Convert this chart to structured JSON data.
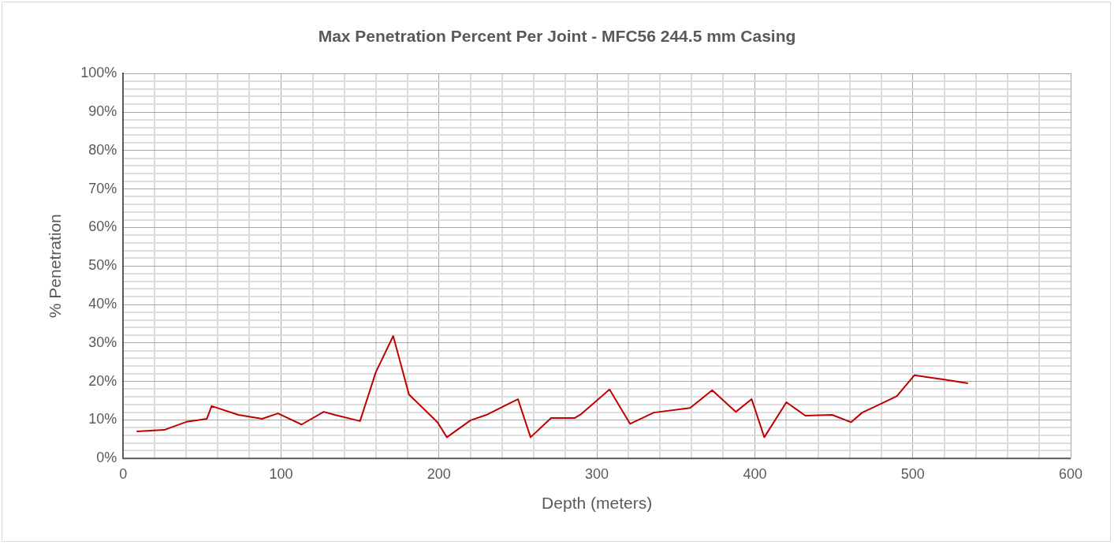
{
  "chart_data": {
    "type": "line",
    "title": "Max Penetration Percent Per Joint - MFC56 244.5 mm Casing",
    "xlabel": "Depth (meters)",
    "ylabel": "% Penetration",
    "x": [
      8.5,
      26,
      40,
      53,
      56,
      73,
      88,
      98,
      113,
      127,
      134,
      150,
      160,
      171,
      181,
      199,
      205,
      220,
      230,
      250,
      258,
      271,
      286,
      290,
      308,
      321,
      336,
      359,
      373,
      388,
      398,
      406,
      420,
      432,
      449,
      461,
      468,
      481,
      490,
      501,
      520,
      535
    ],
    "series": [
      {
        "color": "#c00000",
        "values": [
          7.0,
          7.4,
          9.5,
          10.3,
          13.6,
          11.3,
          10.3,
          11.7,
          8.8,
          12.1,
          11.3,
          9.7,
          22.4,
          31.8,
          16.6,
          9.4,
          5.5,
          9.9,
          11.3,
          15.4,
          5.5,
          10.5,
          10.5,
          11.5,
          17.9,
          9.0,
          11.9,
          13.1,
          17.7,
          12.1,
          15.4,
          5.5,
          14.6,
          11.1,
          11.3,
          9.4,
          11.9,
          14.4,
          16.2,
          21.6,
          20.5,
          19.5
        ]
      }
    ],
    "xlim": [
      0,
      600
    ],
    "xticks": [
      0,
      {
        "value": 20,
        "label": null
      },
      {
        "value": 40,
        "label": null
      },
      {
        "value": 60,
        "label": null
      },
      {
        "value": 80,
        "label": null
      },
      100,
      {
        "value": 120,
        "label": null
      },
      {
        "value": 140,
        "label": null
      },
      {
        "value": 160,
        "label": null
      },
      {
        "value": 180,
        "label": null
      },
      200,
      {
        "value": 220,
        "label": null
      },
      {
        "value": 240,
        "label": null
      },
      {
        "value": 260,
        "label": null
      },
      {
        "value": 280,
        "label": null
      },
      300,
      {
        "value": 320,
        "label": null
      },
      {
        "value": 340,
        "label": null
      },
      {
        "value": 360,
        "label": null
      },
      {
        "value": 380,
        "label": null
      },
      400,
      {
        "value": 420,
        "label": null
      },
      {
        "value": 440,
        "label": null
      },
      {
        "value": 460,
        "label": null
      },
      {
        "value": 480,
        "label": null
      },
      500,
      {
        "value": 520,
        "label": null
      },
      {
        "value": 540,
        "label": null
      },
      {
        "value": 560,
        "label": null
      },
      {
        "value": 580,
        "label": null
      },
      600
    ],
    "ylim": [
      0,
      100
    ],
    "yticks": [
      {
        "value": 0,
        "label": "0%"
      },
      {
        "value": 2,
        "label": null
      },
      {
        "value": 4,
        "label": null
      },
      {
        "value": 6,
        "label": null
      },
      {
        "value": 8,
        "label": null
      },
      {
        "value": 10,
        "label": "10%"
      },
      {
        "value": 12,
        "label": null
      },
      {
        "value": 14,
        "label": null
      },
      {
        "value": 16,
        "label": null
      },
      {
        "value": 18,
        "label": null
      },
      {
        "value": 20,
        "label": "20%"
      },
      {
        "value": 22,
        "label": null
      },
      {
        "value": 24,
        "label": null
      },
      {
        "value": 26,
        "label": null
      },
      {
        "value": 28,
        "label": null
      },
      {
        "value": 30,
        "label": "30%"
      },
      {
        "value": 32,
        "label": null
      },
      {
        "value": 34,
        "label": null
      },
      {
        "value": 36,
        "label": null
      },
      {
        "value": 38,
        "label": null
      },
      {
        "value": 40,
        "label": "40%"
      },
      {
        "value": 42,
        "label": null
      },
      {
        "value": 44,
        "label": null
      },
      {
        "value": 46,
        "label": null
      },
      {
        "value": 48,
        "label": null
      },
      {
        "value": 50,
        "label": "50%"
      },
      {
        "value": 52,
        "label": null
      },
      {
        "value": 54,
        "label": null
      },
      {
        "value": 56,
        "label": null
      },
      {
        "value": 58,
        "label": null
      },
      {
        "value": 60,
        "label": "60%"
      },
      {
        "value": 62,
        "label": null
      },
      {
        "value": 64,
        "label": null
      },
      {
        "value": 66,
        "label": null
      },
      {
        "value": 68,
        "label": null
      },
      {
        "value": 70,
        "label": "70%"
      },
      {
        "value": 72,
        "label": null
      },
      {
        "value": 74,
        "label": null
      },
      {
        "value": 76,
        "label": null
      },
      {
        "value": 78,
        "label": null
      },
      {
        "value": 80,
        "label": "80%"
      },
      {
        "value": 82,
        "label": null
      },
      {
        "value": 84,
        "label": null
      },
      {
        "value": 86,
        "label": null
      },
      {
        "value": 88,
        "label": null
      },
      {
        "value": 90,
        "label": "90%"
      },
      {
        "value": 92,
        "label": null
      },
      {
        "value": 94,
        "label": null
      },
      {
        "value": 96,
        "label": null
      },
      {
        "value": 98,
        "label": null
      },
      {
        "value": 100,
        "label": "100%"
      }
    ],
    "grid": true,
    "legend": false,
    "marker": "none",
    "line_style": "solid"
  }
}
